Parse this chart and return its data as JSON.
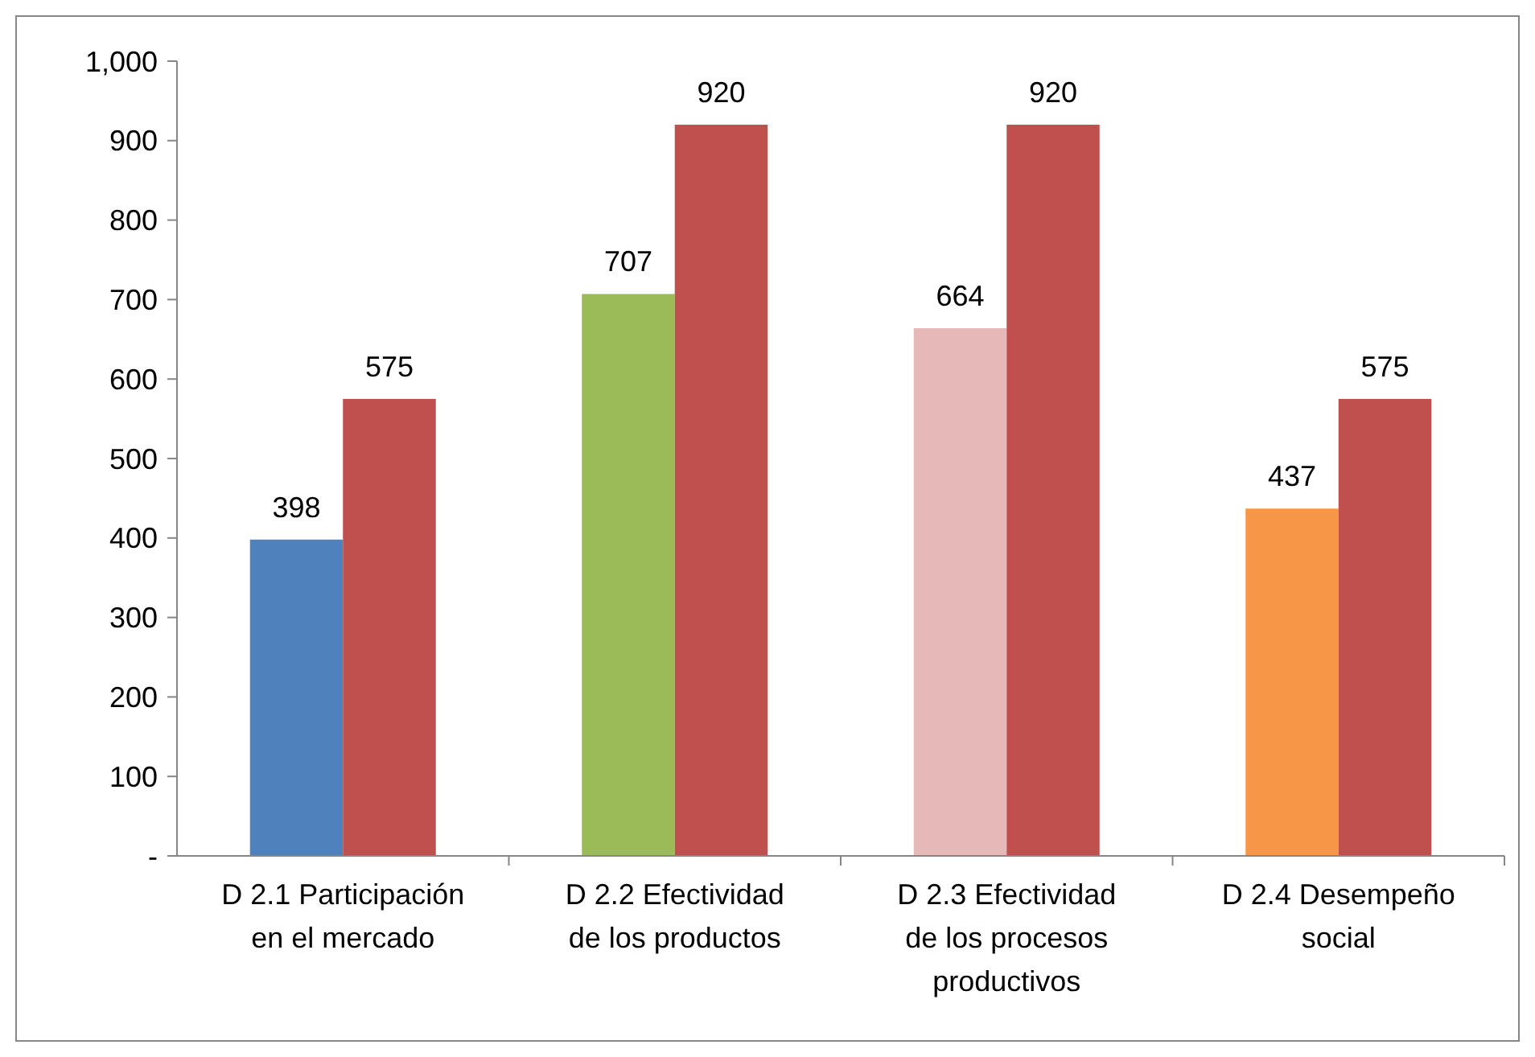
{
  "chart_data": {
    "type": "bar",
    "categories": [
      "D 2.1 Participación en el mercado",
      "D 2.2 Efectividad de los productos",
      "D 2.3 Efectividad de los procesos productivos",
      "D 2.4 Desempeño social"
    ],
    "series": [
      {
        "colors": [
          "#4f81bd",
          "#9bbb59",
          "#e6b9b8",
          "#f79646"
        ],
        "values": [
          398,
          707,
          664,
          437
        ]
      },
      {
        "color": "#c0504d",
        "values": [
          575,
          920,
          920,
          575
        ]
      }
    ],
    "ylim": [
      0,
      1000
    ],
    "yticks": [
      {
        "value": 0,
        "label": "-"
      },
      100,
      200,
      300,
      400,
      500,
      600,
      700,
      800,
      900,
      {
        "value": 1000,
        "label": "1,000"
      }
    ],
    "data_labels": true
  }
}
